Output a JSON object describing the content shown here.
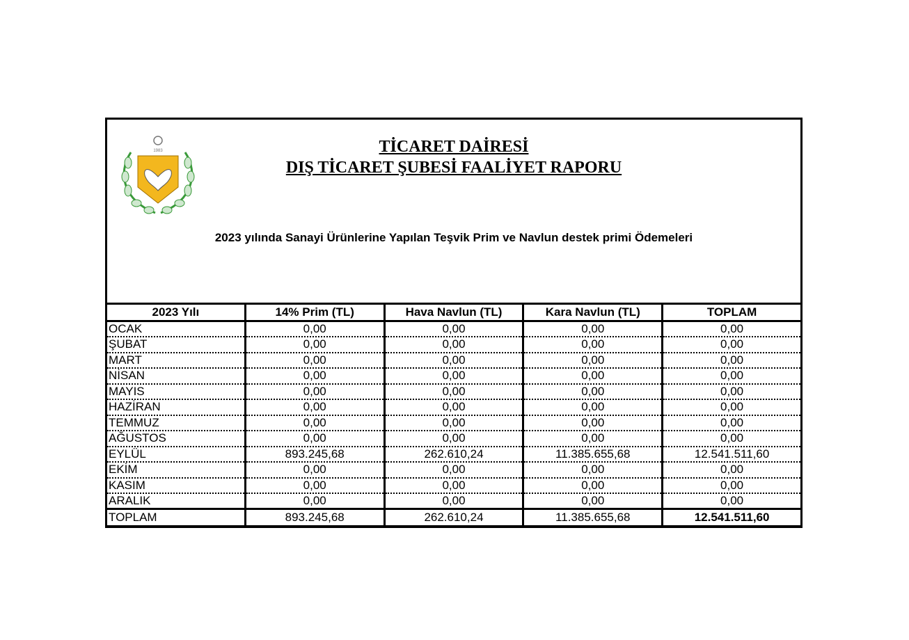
{
  "header": {
    "title1": "TİCARET DAİRESİ",
    "title2": "DIŞ TİCARET ŞUBESİ FAALİYET RAPORU",
    "subtitle": "2023 yılında Sanayi Ürünlerine Yapılan Teşvik Prim ve Navlun destek primi Ödemeleri",
    "logo_text": "1983"
  },
  "table": {
    "columns": [
      "2023 Yılı",
      "14% Prim (TL)",
      "Hava Navlun (TL)",
      "Kara Navlun (TL)",
      "TOPLAM"
    ],
    "rows": [
      [
        "OCAK",
        "0,00",
        "0,00",
        "0,00",
        "0,00"
      ],
      [
        "ŞUBAT",
        "0,00",
        "0,00",
        "0,00",
        "0,00"
      ],
      [
        "MART",
        "0,00",
        "0,00",
        "0,00",
        "0,00"
      ],
      [
        "NİSAN",
        "0,00",
        "0,00",
        "0,00",
        "0,00"
      ],
      [
        "MAYIS",
        "0,00",
        "0,00",
        "0,00",
        "0,00"
      ],
      [
        "HAZİRAN",
        "0,00",
        "0,00",
        "0,00",
        "0,00"
      ],
      [
        "TEMMUZ",
        "0,00",
        "0,00",
        "0,00",
        "0,00"
      ],
      [
        "AĞUSTOS",
        "0,00",
        "0,00",
        "0,00",
        "0,00"
      ],
      [
        "EYLÜL",
        "893.245,68",
        "262.610,24",
        "11.385.655,68",
        "12.541.511,60"
      ],
      [
        "EKİM",
        "0,00",
        "0,00",
        "0,00",
        "0,00"
      ],
      [
        "KASIM",
        "0,00",
        "0,00",
        "0,00",
        "0,00"
      ],
      [
        "ARALIK",
        "0,00",
        "0,00",
        "0,00",
        "0,00"
      ]
    ],
    "total": [
      "TOPLAM",
      "893.245,68",
      "262.610,24",
      "11.385.655,68",
      "12.541.511,60"
    ]
  }
}
